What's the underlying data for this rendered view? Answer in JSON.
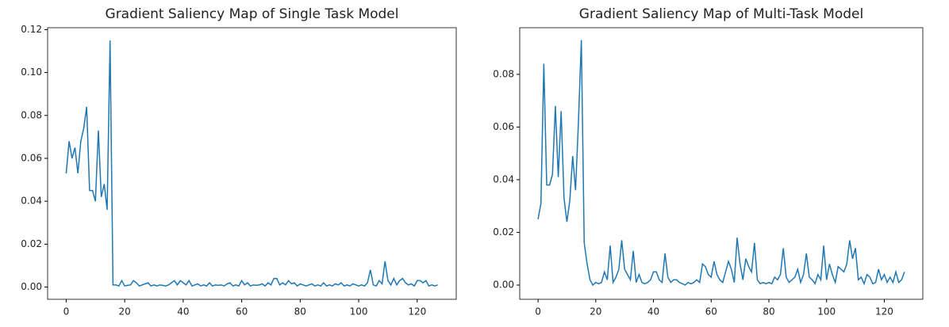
{
  "chart_data": [
    {
      "type": "line",
      "title": "Gradient Saliency Map of Single Task Model",
      "x": [
        0,
        1,
        2,
        3,
        4,
        5,
        6,
        7,
        8,
        9,
        10,
        11,
        12,
        13,
        14,
        15,
        16,
        17,
        18,
        19,
        20,
        21,
        22,
        23,
        24,
        25,
        26,
        27,
        28,
        29,
        30,
        31,
        32,
        33,
        34,
        35,
        36,
        37,
        38,
        39,
        40,
        41,
        42,
        43,
        44,
        45,
        46,
        47,
        48,
        49,
        50,
        51,
        52,
        53,
        54,
        55,
        56,
        57,
        58,
        59,
        60,
        61,
        62,
        63,
        64,
        65,
        66,
        67,
        68,
        69,
        70,
        71,
        72,
        73,
        74,
        75,
        76,
        77,
        78,
        79,
        80,
        81,
        82,
        83,
        84,
        85,
        86,
        87,
        88,
        89,
        90,
        91,
        92,
        93,
        94,
        95,
        96,
        97,
        98,
        99,
        100,
        101,
        102,
        103,
        104,
        105,
        106,
        107,
        108,
        109,
        110,
        111,
        112,
        113,
        114,
        115,
        116,
        117,
        118,
        119,
        120,
        121,
        122,
        123,
        124,
        125,
        126,
        127
      ],
      "series": [
        {
          "color": "#1f77b4",
          "values": [
            0.053,
            0.068,
            0.06,
            0.065,
            0.053,
            0.068,
            0.074,
            0.084,
            0.045,
            0.045,
            0.04,
            0.073,
            0.042,
            0.048,
            0.036,
            0.115,
            0.001,
            0.001,
            0.0005,
            0.003,
            0.0005,
            0.0008,
            0.001,
            0.003,
            0.002,
            0.0005,
            0.001,
            0.0015,
            0.002,
            0.0005,
            0.001,
            0.0005,
            0.001,
            0.0008,
            0.0005,
            0.001,
            0.002,
            0.003,
            0.001,
            0.003,
            0.002,
            0.001,
            0.003,
            0.0005,
            0.001,
            0.0015,
            0.0005,
            0.001,
            0.0005,
            0.002,
            0.0005,
            0.001,
            0.0008,
            0.001,
            0.0005,
            0.0015,
            0.002,
            0.0005,
            0.001,
            0.0005,
            0.003,
            0.001,
            0.002,
            0.0005,
            0.001,
            0.0008,
            0.001,
            0.0015,
            0.0005,
            0.002,
            0.001,
            0.004,
            0.004,
            0.001,
            0.002,
            0.001,
            0.003,
            0.0015,
            0.002,
            0.0005,
            0.0015,
            0.001,
            0.0005,
            0.001,
            0.0015,
            0.0005,
            0.001,
            0.0005,
            0.002,
            0.0005,
            0.001,
            0.0005,
            0.0015,
            0.001,
            0.002,
            0.0005,
            0.001,
            0.0005,
            0.0015,
            0.001,
            0.0005,
            0.001,
            0.0005,
            0.002,
            0.008,
            0.001,
            0.0005,
            0.003,
            0.0015,
            0.012,
            0.003,
            0.001,
            0.004,
            0.001,
            0.003,
            0.004,
            0.002,
            0.001,
            0.0015,
            0.0005,
            0.003,
            0.003,
            0.002,
            0.003,
            0.0005,
            0.001,
            0.0005,
            0.001
          ]
        }
      ],
      "xlim": [
        -6.35,
        133.35
      ],
      "xticks": [
        0,
        20,
        40,
        60,
        80,
        100,
        120
      ],
      "ylim": [
        -0.0057,
        0.1209
      ],
      "yticks": [
        {
          "value": 0,
          "label": "0.00"
        },
        {
          "value": 0.02,
          "label": "0.02"
        },
        {
          "value": 0.04,
          "label": "0.04"
        },
        {
          "value": 0.06,
          "label": "0.06"
        },
        {
          "value": 0.08,
          "label": "0.08"
        },
        {
          "value": 0.1,
          "label": "0.10"
        },
        {
          "value": 0.12,
          "label": "0.12"
        }
      ]
    },
    {
      "type": "line",
      "title": "Gradient Saliency Map of Multi-Task Model",
      "x": [
        0,
        1,
        2,
        3,
        4,
        5,
        6,
        7,
        8,
        9,
        10,
        11,
        12,
        13,
        14,
        15,
        16,
        17,
        18,
        19,
        20,
        21,
        22,
        23,
        24,
        25,
        26,
        27,
        28,
        29,
        30,
        31,
        32,
        33,
        34,
        35,
        36,
        37,
        38,
        39,
        40,
        41,
        42,
        43,
        44,
        45,
        46,
        47,
        48,
        49,
        50,
        51,
        52,
        53,
        54,
        55,
        56,
        57,
        58,
        59,
        60,
        61,
        62,
        63,
        64,
        65,
        66,
        67,
        68,
        69,
        70,
        71,
        72,
        73,
        74,
        75,
        76,
        77,
        78,
        79,
        80,
        81,
        82,
        83,
        84,
        85,
        86,
        87,
        88,
        89,
        90,
        91,
        92,
        93,
        94,
        95,
        96,
        97,
        98,
        99,
        100,
        101,
        102,
        103,
        104,
        105,
        106,
        107,
        108,
        109,
        110,
        111,
        112,
        113,
        114,
        115,
        116,
        117,
        118,
        119,
        120,
        121,
        122,
        123,
        124,
        125,
        126,
        127
      ],
      "series": [
        {
          "color": "#1f77b4",
          "values": [
            0.025,
            0.031,
            0.084,
            0.038,
            0.038,
            0.042,
            0.068,
            0.041,
            0.066,
            0.033,
            0.024,
            0.032,
            0.049,
            0.036,
            0.062,
            0.093,
            0.016,
            0.008,
            0.002,
            0.0,
            0.001,
            0.0005,
            0.001,
            0.005,
            0.002,
            0.015,
            0.001,
            0.003,
            0.006,
            0.017,
            0.006,
            0.004,
            0.002,
            0.013,
            0.001,
            0.004,
            0.001,
            0.0005,
            0.001,
            0.002,
            0.005,
            0.005,
            0.002,
            0.001,
            0.012,
            0.003,
            0.001,
            0.002,
            0.002,
            0.001,
            0.0005,
            0.0,
            0.001,
            0.0005,
            0.001,
            0.002,
            0.001,
            0.008,
            0.007,
            0.004,
            0.003,
            0.009,
            0.004,
            0.002,
            0.001,
            0.005,
            0.009,
            0.006,
            0.001,
            0.018,
            0.008,
            0.002,
            0.01,
            0.007,
            0.005,
            0.016,
            0.002,
            0.0005,
            0.001,
            0.0005,
            0.001,
            0.0005,
            0.003,
            0.002,
            0.004,
            0.014,
            0.003,
            0.001,
            0.002,
            0.003,
            0.006,
            0.001,
            0.004,
            0.012,
            0.003,
            0.002,
            0.0005,
            0.004,
            0.002,
            0.015,
            0.002,
            0.008,
            0.004,
            0.001,
            0.007,
            0.006,
            0.005,
            0.008,
            0.017,
            0.01,
            0.014,
            0.002,
            0.003,
            0.0005,
            0.004,
            0.003,
            0.0005,
            0.001,
            0.006,
            0.002,
            0.004,
            0.001,
            0.003,
            0.001,
            0.005,
            0.001,
            0.002,
            0.005
          ]
        }
      ],
      "xlim": [
        -6.35,
        133.35
      ],
      "xticks": [
        0,
        20,
        40,
        60,
        80,
        100,
        120
      ],
      "ylim": [
        -0.0054,
        0.0977
      ],
      "yticks": [
        {
          "value": 0,
          "label": "0.00"
        },
        {
          "value": 0.02,
          "label": "0.02"
        },
        {
          "value": 0.04,
          "label": "0.04"
        },
        {
          "value": 0.06,
          "label": "0.06"
        },
        {
          "value": 0.08,
          "label": "0.08"
        }
      ]
    }
  ]
}
